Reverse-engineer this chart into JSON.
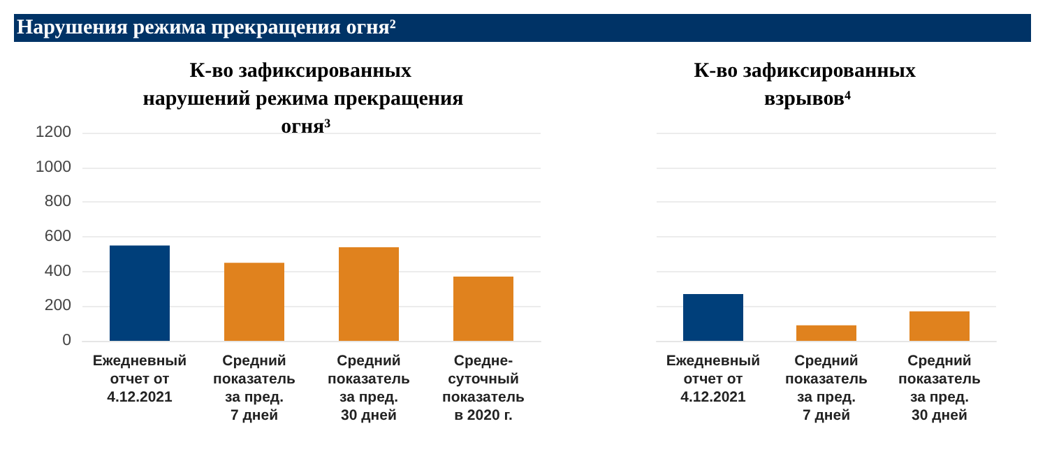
{
  "chart_data": [
    {
      "type": "bar",
      "annotations": [
        "Нарушения режима прекращения огня²"
      ],
      "subtitle": "К-во зафиксированных нарушений режима прекращения огня³",
      "categories": [
        "Ежедневный\nотчет от\n4.12.2021",
        "Средний\nпоказатель\nза пред.\n7 дней",
        "Средний\nпоказатель\nза пред.\n30 дней",
        "Средне-\nсуточный\nпоказатель\nв 2020 г."
      ],
      "values": [
        550,
        450,
        540,
        370
      ],
      "colors": [
        "#003f7a",
        "#e0821e",
        "#e0821e",
        "#e0821e"
      ],
      "ylim": [
        0,
        1200
      ],
      "yticks": [
        0,
        200,
        400,
        600,
        800,
        1000,
        1200
      ],
      "grid": "y"
    },
    {
      "type": "bar",
      "title": "К-во зафиксированных взрывов⁴",
      "categories": [
        "Ежедневный\nотчет от\n4.12.2021",
        "Средний\nпоказатель\nза пред.\n7 дней",
        "Средний\nпоказатель\nза пред.\n30 дней"
      ],
      "values": [
        270,
        90,
        170
      ],
      "colors": [
        "#003f7a",
        "#e0821e",
        "#e0821e"
      ],
      "ylim": [
        0,
        1200
      ],
      "yticks": [
        0,
        200,
        400,
        600,
        800,
        1000,
        1200
      ],
      "grid": "y",
      "tick_labels": "x"
    }
  ]
}
